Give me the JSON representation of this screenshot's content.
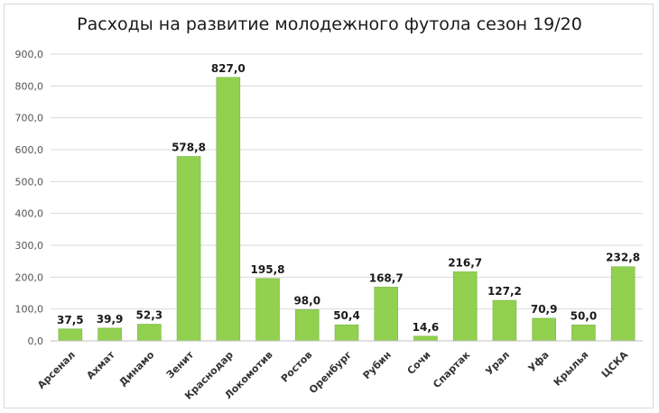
{
  "chart_data": {
    "type": "bar",
    "title": "Расходы на развитие молодежного футола сезон 19/20",
    "xlabel": "",
    "ylabel": "",
    "ylim": [
      0,
      900
    ],
    "ytick_step": 100,
    "ytick_labels": [
      "0,0",
      "100,0",
      "200,0",
      "300,0",
      "400,0",
      "500,0",
      "600,0",
      "700,0",
      "800,0",
      "900,0"
    ],
    "grid": true,
    "legend": "none",
    "bar_color": "#92d050",
    "bar_edge_color": "#7ab648",
    "categories": [
      "Арсенал",
      "Ахмат",
      "Динамо",
      "Зенит",
      "Краснодар",
      "Локомотив",
      "Ростов",
      "Оренбург",
      "Рубин",
      "Сочи",
      "Спартак",
      "Урал",
      "Уфа",
      "Крылья",
      "ЦСКА"
    ],
    "values": [
      37.5,
      39.9,
      52.3,
      578.8,
      827.0,
      195.8,
      98.0,
      50.4,
      168.7,
      14.6,
      216.7,
      127.2,
      70.9,
      50.0,
      232.8
    ],
    "value_labels": [
      "37,5",
      "39,9",
      "52,3",
      "578,8",
      "827,0",
      "195,8",
      "98,0",
      "50,4",
      "168,7",
      "14,6",
      "216,7",
      "127,2",
      "70,9",
      "50,0",
      "232,8"
    ]
  }
}
